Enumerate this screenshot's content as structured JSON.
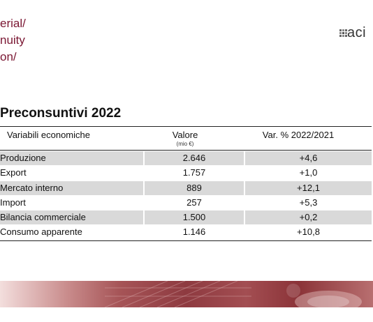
{
  "header": {
    "title_lines": [
      "erial/",
      "nuity",
      "on/"
    ],
    "logo_text": "aci",
    "logo_tagline": "",
    "logo_icon": "logo-mark-icon"
  },
  "section_title": "Preconsuntivi 2022",
  "table": {
    "columns": [
      "Variabili economiche",
      "Valore",
      "Var. % 2022/2021"
    ],
    "value_unit": "(mio €)",
    "rows": [
      {
        "label": "Produzione",
        "value": "2.646",
        "change": "+4,6"
      },
      {
        "label": "Export",
        "value": "1.757",
        "change": "+1,0"
      },
      {
        "label": "Mercato interno",
        "value": "889",
        "change": "+12,1"
      },
      {
        "label": "Import",
        "value": "257",
        "change": "+5,3"
      },
      {
        "label": "Bilancia commerciale",
        "value": "1.500",
        "change": "+0,2"
      },
      {
        "label": "Consumo apparente",
        "value": "1.146",
        "change": "+10,8"
      }
    ]
  },
  "colors": {
    "accent": "#7a1632",
    "row_shade": "#d9d9d9",
    "banner": "#8e3a40"
  }
}
